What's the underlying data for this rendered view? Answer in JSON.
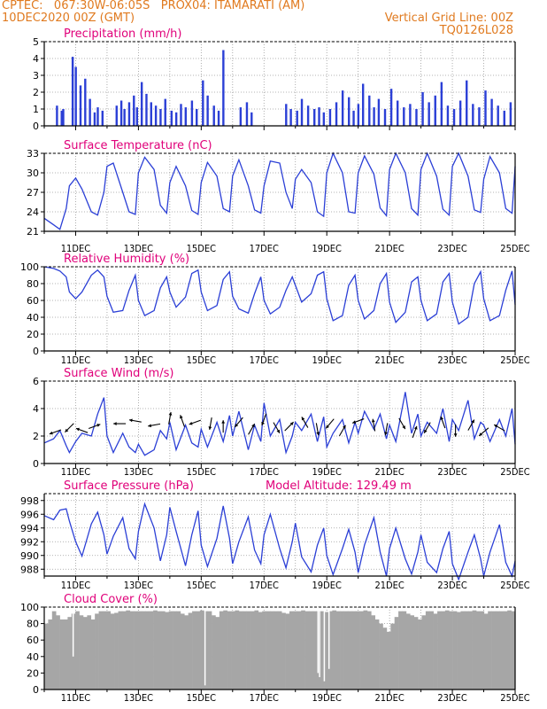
{
  "header": {
    "line1": "CPTEC:   067:30W-06:05S   PROX04: ITAMARATI (AM)",
    "line2": "10DEC2020 00Z (GMT)",
    "grid_note": "Vertical Grid Line: 00Z",
    "code": "TQ0126L028"
  },
  "x_ticks": [
    "11DEC",
    "13DEC",
    "15DEC",
    "17DEC",
    "19DEC",
    "21DEC",
    "23DEC",
    "25DEC"
  ],
  "colors": {
    "title": "#e0007a",
    "header": "#e07a1f",
    "line": "#2b3fd6",
    "bar": "#2b3fd6",
    "cloud": "#a6a6a6"
  },
  "chart_data": [
    {
      "id": "precip",
      "type": "bar",
      "title": "Precipitation (mm/h)",
      "ylim": [
        0,
        5
      ],
      "yticks": [
        0,
        1,
        2,
        3,
        4,
        5
      ],
      "x_range_days": [
        10,
        25
      ],
      "x": [
        10.4,
        10.55,
        10.6,
        10.9,
        11.0,
        11.15,
        11.3,
        11.45,
        11.6,
        11.7,
        11.85,
        12.3,
        12.45,
        12.55,
        12.7,
        12.85,
        12.95,
        13.1,
        13.25,
        13.4,
        13.55,
        13.7,
        13.85,
        14.05,
        14.2,
        14.35,
        14.5,
        14.7,
        14.85,
        15.05,
        15.2,
        15.4,
        15.55,
        15.7,
        16.25,
        16.45,
        16.6,
        17.7,
        17.85,
        18.05,
        18.2,
        18.4,
        18.6,
        18.75,
        18.9,
        19.1,
        19.3,
        19.5,
        19.7,
        19.85,
        20.0,
        20.15,
        20.35,
        20.5,
        20.65,
        20.85,
        21.05,
        21.25,
        21.45,
        21.65,
        21.85,
        22.05,
        22.25,
        22.45,
        22.65,
        22.85,
        23.05,
        23.25,
        23.45,
        23.65,
        23.85,
        24.05,
        24.25,
        24.45,
        24.65,
        24.85
      ],
      "values": [
        1.2,
        0.9,
        1.0,
        4.1,
        3.5,
        2.4,
        2.8,
        1.6,
        0.8,
        1.1,
        0.9,
        1.2,
        1.5,
        1.0,
        1.4,
        1.8,
        1.1,
        2.6,
        1.9,
        1.4,
        1.2,
        1.0,
        1.6,
        0.9,
        0.8,
        1.3,
        1.1,
        1.5,
        1.0,
        2.7,
        1.8,
        1.2,
        0.9,
        4.5,
        1.1,
        1.4,
        0.8,
        1.3,
        1.0,
        0.9,
        1.6,
        1.2,
        1.0,
        1.1,
        0.8,
        1.0,
        1.4,
        2.1,
        1.7,
        0.9,
        1.3,
        2.5,
        1.8,
        1.1,
        1.6,
        1.0,
        2.2,
        1.5,
        1.1,
        1.3,
        1.0,
        2.0,
        1.4,
        1.8,
        2.6,
        1.2,
        1.0,
        1.5,
        2.7,
        1.3,
        1.1,
        2.1,
        1.6,
        1.2,
        0.9,
        1.4
      ],
      "xlabel": "",
      "ylabel": "",
      "grid": true
    },
    {
      "id": "temp",
      "type": "line",
      "title": "Surface Temperature (nC)",
      "ylim": [
        21,
        33
      ],
      "yticks": [
        21,
        24,
        27,
        30,
        33
      ],
      "x": [
        10.0,
        10.3,
        10.5,
        10.7,
        10.8,
        11.0,
        11.2,
        11.5,
        11.7,
        11.9,
        12.0,
        12.2,
        12.5,
        12.7,
        12.9,
        13.0,
        13.2,
        13.5,
        13.7,
        13.9,
        14.0,
        14.2,
        14.5,
        14.7,
        14.9,
        15.0,
        15.2,
        15.5,
        15.7,
        15.9,
        16.0,
        16.2,
        16.5,
        16.7,
        16.9,
        17.0,
        17.2,
        17.5,
        17.7,
        17.9,
        18.0,
        18.2,
        18.5,
        18.7,
        18.9,
        19.0,
        19.2,
        19.5,
        19.7,
        19.9,
        20.0,
        20.2,
        20.5,
        20.7,
        20.9,
        21.0,
        21.2,
        21.5,
        21.7,
        21.9,
        22.0,
        22.2,
        22.5,
        22.7,
        22.9,
        23.0,
        23.2,
        23.5,
        23.7,
        23.9,
        24.0,
        24.2,
        24.5,
        24.7,
        24.9,
        25.0
      ],
      "values": [
        23.0,
        22.0,
        21.3,
        24.5,
        28.0,
        29.2,
        27.5,
        24.0,
        23.5,
        27.0,
        31.0,
        31.5,
        27.0,
        24.0,
        23.6,
        30.0,
        32.4,
        30.5,
        25.0,
        23.8,
        28.5,
        31.0,
        28.0,
        24.2,
        23.6,
        28.5,
        31.6,
        29.5,
        24.5,
        24.0,
        29.5,
        32.0,
        28.0,
        24.3,
        23.8,
        28.0,
        31.8,
        31.5,
        27.0,
        24.5,
        29.0,
        30.5,
        28.5,
        24.0,
        23.3,
        30.0,
        33.0,
        30.0,
        24.0,
        23.8,
        30.0,
        32.6,
        29.8,
        24.6,
        23.4,
        30.5,
        33.0,
        30.0,
        24.5,
        23.5,
        30.5,
        33.0,
        29.5,
        24.4,
        23.5,
        31.0,
        33.0,
        29.5,
        24.3,
        23.9,
        29.0,
        32.5,
        30.0,
        24.5,
        23.8,
        31.0
      ],
      "xlabel": "",
      "ylabel": "",
      "grid": true
    },
    {
      "id": "rh",
      "type": "line",
      "title": "Relative Humidity (%)",
      "ylim": [
        0,
        100
      ],
      "yticks": [
        0,
        20,
        40,
        60,
        80,
        100
      ],
      "x": [
        10.0,
        10.3,
        10.5,
        10.7,
        10.8,
        11.0,
        11.2,
        11.5,
        11.7,
        11.9,
        12.0,
        12.2,
        12.5,
        12.7,
        12.9,
        13.0,
        13.2,
        13.5,
        13.7,
        13.9,
        14.0,
        14.2,
        14.5,
        14.7,
        14.9,
        15.0,
        15.2,
        15.5,
        15.7,
        15.9,
        16.0,
        16.2,
        16.5,
        16.7,
        16.9,
        17.0,
        17.2,
        17.5,
        17.7,
        17.9,
        18.0,
        18.2,
        18.5,
        18.7,
        18.9,
        19.0,
        19.2,
        19.5,
        19.7,
        19.9,
        20.0,
        20.2,
        20.5,
        20.7,
        20.9,
        21.0,
        21.2,
        21.5,
        21.7,
        21.9,
        22.0,
        22.2,
        22.5,
        22.7,
        22.9,
        23.0,
        23.2,
        23.5,
        23.7,
        23.9,
        24.0,
        24.2,
        24.5,
        24.7,
        24.9,
        25.0
      ],
      "values": [
        100,
        98,
        95,
        88,
        70,
        62,
        70,
        90,
        96,
        88,
        65,
        46,
        48,
        72,
        90,
        60,
        42,
        48,
        75,
        88,
        70,
        52,
        64,
        92,
        96,
        70,
        48,
        54,
        85,
        94,
        65,
        50,
        45,
        68,
        88,
        60,
        44,
        52,
        72,
        88,
        78,
        58,
        68,
        90,
        94,
        62,
        36,
        42,
        78,
        90,
        60,
        38,
        48,
        80,
        92,
        58,
        34,
        46,
        82,
        88,
        60,
        36,
        44,
        82,
        92,
        58,
        32,
        40,
        80,
        94,
        62,
        36,
        42,
        72,
        95,
        55
      ],
      "xlabel": "",
      "ylabel": "",
      "grid": true
    },
    {
      "id": "wind",
      "type": "line",
      "title": "Surface Wind (m/s)",
      "ylim": [
        0,
        6
      ],
      "yticks": [
        0,
        2,
        4,
        6
      ],
      "x": [
        10.0,
        10.3,
        10.5,
        10.7,
        10.8,
        11.0,
        11.2,
        11.5,
        11.7,
        11.9,
        12.0,
        12.2,
        12.5,
        12.7,
        12.9,
        13.0,
        13.2,
        13.5,
        13.7,
        13.9,
        14.0,
        14.2,
        14.5,
        14.7,
        14.9,
        15.0,
        15.2,
        15.5,
        15.7,
        15.9,
        16.0,
        16.2,
        16.5,
        16.7,
        16.9,
        17.0,
        17.2,
        17.5,
        17.7,
        17.9,
        18.0,
        18.2,
        18.5,
        18.7,
        18.9,
        19.0,
        19.2,
        19.5,
        19.7,
        19.9,
        20.0,
        20.2,
        20.5,
        20.7,
        20.9,
        21.0,
        21.2,
        21.5,
        21.7,
        21.9,
        22.0,
        22.2,
        22.5,
        22.7,
        22.9,
        23.0,
        23.2,
        23.5,
        23.7,
        23.9,
        24.0,
        24.2,
        24.5,
        24.7,
        24.9,
        25.0
      ],
      "values": [
        1.5,
        1.8,
        2.4,
        1.3,
        0.8,
        1.6,
        2.2,
        2.0,
        3.6,
        4.8,
        2.0,
        0.8,
        2.2,
        1.2,
        0.8,
        1.4,
        0.6,
        1.0,
        2.4,
        1.8,
        3.0,
        1.0,
        2.8,
        1.5,
        1.2,
        2.5,
        1.2,
        3.0,
        1.6,
        3.5,
        2.0,
        3.8,
        1.0,
        2.8,
        1.6,
        4.4,
        2.0,
        3.2,
        0.8,
        2.0,
        3.0,
        2.4,
        3.6,
        1.6,
        3.4,
        1.2,
        2.2,
        3.2,
        1.5,
        3.0,
        2.2,
        3.8,
        2.5,
        3.6,
        1.8,
        2.8,
        1.6,
        5.2,
        2.2,
        3.6,
        2.0,
        3.0,
        2.2,
        4.0,
        1.6,
        3.2,
        2.4,
        4.6,
        1.8,
        3.0,
        2.8,
        1.6,
        3.2,
        2.0,
        4.0,
        1.4
      ],
      "arrows_x": [
        10.35,
        10.8,
        11.2,
        11.6,
        12.4,
        12.9,
        13.5,
        14.0,
        14.4,
        14.8,
        15.3,
        15.7,
        16.2,
        16.6,
        17.0,
        17.4,
        17.8,
        18.3,
        18.7,
        19.1,
        19.5,
        20.0,
        20.5,
        20.9,
        21.4,
        21.8,
        22.2,
        22.7,
        23.1,
        23.6,
        24.0,
        24.5
      ],
      "arrows_y": [
        2.3,
        2.6,
        2.4,
        2.7,
        2.9,
        3.1,
        2.8,
        3.3,
        3.1,
        3.0,
        2.9,
        2.7,
        3.0,
        2.5,
        3.2,
        2.6,
        2.7,
        3.0,
        2.5,
        2.9,
        2.4,
        3.1,
        2.8,
        2.5,
        2.9,
        2.3,
        2.6,
        3.0,
        2.4,
        2.8,
        2.3,
        2.6
      ],
      "arrows_dir_deg": [
        200,
        225,
        160,
        20,
        180,
        170,
        190,
        80,
        110,
        200,
        260,
        90,
        230,
        60,
        250,
        300,
        45,
        120,
        280,
        230,
        60,
        200,
        100,
        260,
        300,
        70,
        240,
        110,
        270,
        60,
        220,
        150
      ],
      "xlabel": "",
      "ylabel": "",
      "grid": true
    },
    {
      "id": "pressure",
      "type": "line",
      "title": "Surface Pressure (hPa)",
      "subtitle": "Model Altitude: 129.49 m",
      "ylim": [
        987,
        999
      ],
      "yticks": [
        988,
        990,
        992,
        994,
        996,
        998
      ],
      "x": [
        10.0,
        10.3,
        10.5,
        10.7,
        10.8,
        11.0,
        11.2,
        11.5,
        11.7,
        11.9,
        12.0,
        12.2,
        12.5,
        12.7,
        12.9,
        13.0,
        13.2,
        13.5,
        13.7,
        13.9,
        14.0,
        14.2,
        14.5,
        14.7,
        14.9,
        15.0,
        15.2,
        15.5,
        15.7,
        15.9,
        16.0,
        16.2,
        16.5,
        16.7,
        16.9,
        17.0,
        17.2,
        17.5,
        17.7,
        17.9,
        18.0,
        18.2,
        18.5,
        18.7,
        18.9,
        19.0,
        19.2,
        19.5,
        19.7,
        19.9,
        20.0,
        20.2,
        20.5,
        20.7,
        20.9,
        21.0,
        21.2,
        21.5,
        21.7,
        21.9,
        22.0,
        22.2,
        22.5,
        22.7,
        22.9,
        23.0,
        23.2,
        23.5,
        23.7,
        23.9,
        24.0,
        24.2,
        24.5,
        24.7,
        24.9,
        25.0
      ],
      "values": [
        995.8,
        995.2,
        996.6,
        996.8,
        995.0,
        992.0,
        989.9,
        994.6,
        996.3,
        993.0,
        990.2,
        992.8,
        995.5,
        991.0,
        989.5,
        993.5,
        997.5,
        994.0,
        989.2,
        993.0,
        997.0,
        993.5,
        988.5,
        993.0,
        996.5,
        991.5,
        988.4,
        992.5,
        997.2,
        992.5,
        988.8,
        992.0,
        995.6,
        990.8,
        988.8,
        993.0,
        996.0,
        991.0,
        988.2,
        992.0,
        994.7,
        989.8,
        987.6,
        991.5,
        994.0,
        990.0,
        987.2,
        991.0,
        993.8,
        990.5,
        987.5,
        991.5,
        995.5,
        990.5,
        987.0,
        991.0,
        994.0,
        989.5,
        987.3,
        990.5,
        993.0,
        989.0,
        987.5,
        991.0,
        993.5,
        988.8,
        986.5,
        990.5,
        993.0,
        989.5,
        987.0,
        990.5,
        994.5,
        989.0,
        987.0,
        989.2
      ],
      "xlabel": "",
      "ylabel": "",
      "grid": true
    },
    {
      "id": "cloud",
      "type": "bar",
      "title": "Cloud Cover (%)",
      "ylim": [
        0,
        100
      ],
      "yticks": [
        0,
        20,
        40,
        60,
        80,
        100
      ],
      "x_start": 10.0,
      "x_step": 0.125,
      "values": [
        80,
        85,
        95,
        90,
        85,
        85,
        88,
        92,
        95,
        90,
        88,
        90,
        85,
        92,
        95,
        95,
        95,
        92,
        93,
        95,
        95,
        96,
        95,
        95,
        95,
        95,
        95,
        95,
        96,
        95,
        95,
        94,
        95,
        95,
        95,
        92,
        90,
        93,
        95,
        95,
        96,
        95,
        95,
        90,
        88,
        95,
        96,
        95,
        95,
        96,
        95,
        95,
        95,
        95,
        96,
        94,
        95,
        95,
        95,
        95,
        95,
        93,
        92,
        95,
        95,
        95,
        96,
        95,
        95,
        95,
        95,
        95,
        94,
        95,
        96,
        95,
        95,
        95,
        95,
        95,
        95,
        95,
        96,
        95,
        90,
        85,
        80,
        75,
        70,
        80,
        88,
        95,
        95,
        92,
        90,
        88,
        85,
        90,
        95,
        95,
        92,
        95,
        95,
        96,
        95,
        95,
        94,
        95,
        95,
        95,
        96,
        95,
        95,
        92,
        95,
        95,
        95,
        95,
        95,
        96,
        95
      ],
      "dips_x": [
        10.9,
        15.1,
        18.7,
        18.75,
        18.9,
        19.05
      ],
      "dips_v": [
        40,
        5,
        20,
        15,
        10,
        25
      ],
      "xlabel": "",
      "ylabel": "",
      "grid": true
    }
  ]
}
